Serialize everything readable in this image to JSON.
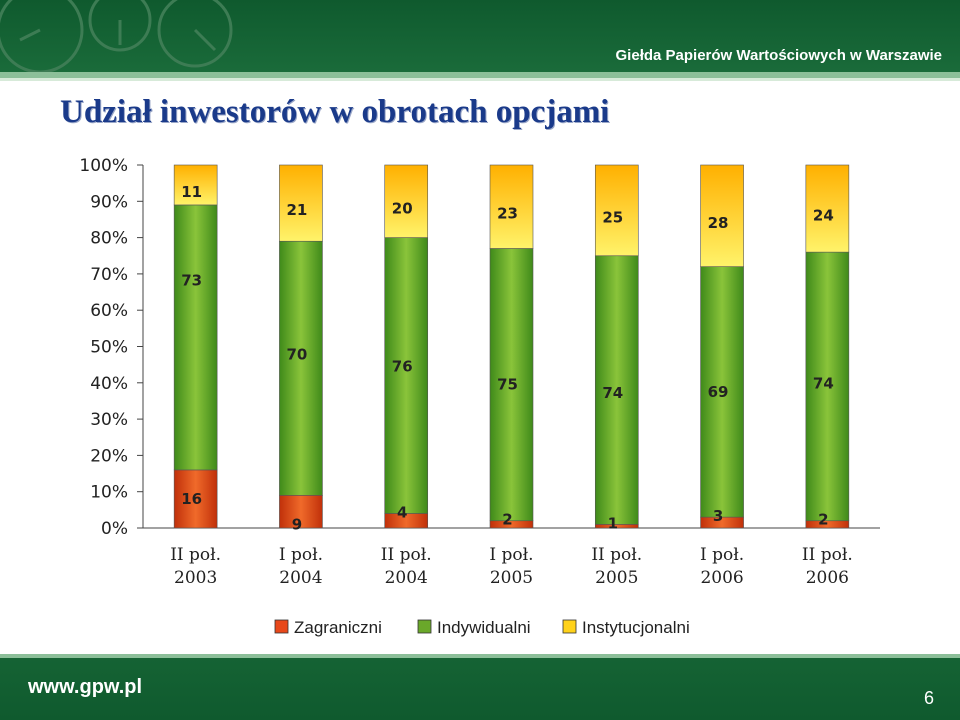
{
  "header": {
    "organization": "Giełda Papierów Wartościowych w Warszawie"
  },
  "footer": {
    "url": "www.gpw.pl",
    "page_number": "6"
  },
  "colors": {
    "zagraniczni": "#e8481a",
    "indywidualni": "#6aa82a",
    "instytucjonalni": "#ffd21a",
    "band": "#0f5a2e"
  },
  "chart_data": {
    "type": "bar",
    "stacked": true,
    "title": "Udział inwestorów w obrotach opcjami",
    "xlabel": "",
    "ylabel": "",
    "ylim": [
      0,
      100
    ],
    "y_ticks": [
      "0%",
      "10%",
      "20%",
      "30%",
      "40%",
      "50%",
      "60%",
      "70%",
      "80%",
      "90%",
      "100%"
    ],
    "categories": [
      [
        "II poł.",
        "2003"
      ],
      [
        "I poł.",
        "2004"
      ],
      [
        "II poł.",
        "2004"
      ],
      [
        "I poł.",
        "2005"
      ],
      [
        "II poł.",
        "2005"
      ],
      [
        "I poł.",
        "2006"
      ],
      [
        "II poł.",
        "2006"
      ]
    ],
    "series": [
      {
        "name": "Zagraniczni",
        "values": [
          16,
          9,
          4,
          2,
          1,
          3,
          2
        ]
      },
      {
        "name": "Indywidualni",
        "values": [
          73,
          70,
          76,
          75,
          74,
          69,
          74
        ]
      },
      {
        "name": "Instytucjonalni",
        "values": [
          11,
          21,
          20,
          23,
          25,
          28,
          24
        ]
      }
    ],
    "legend_position": "bottom",
    "grid": false
  }
}
